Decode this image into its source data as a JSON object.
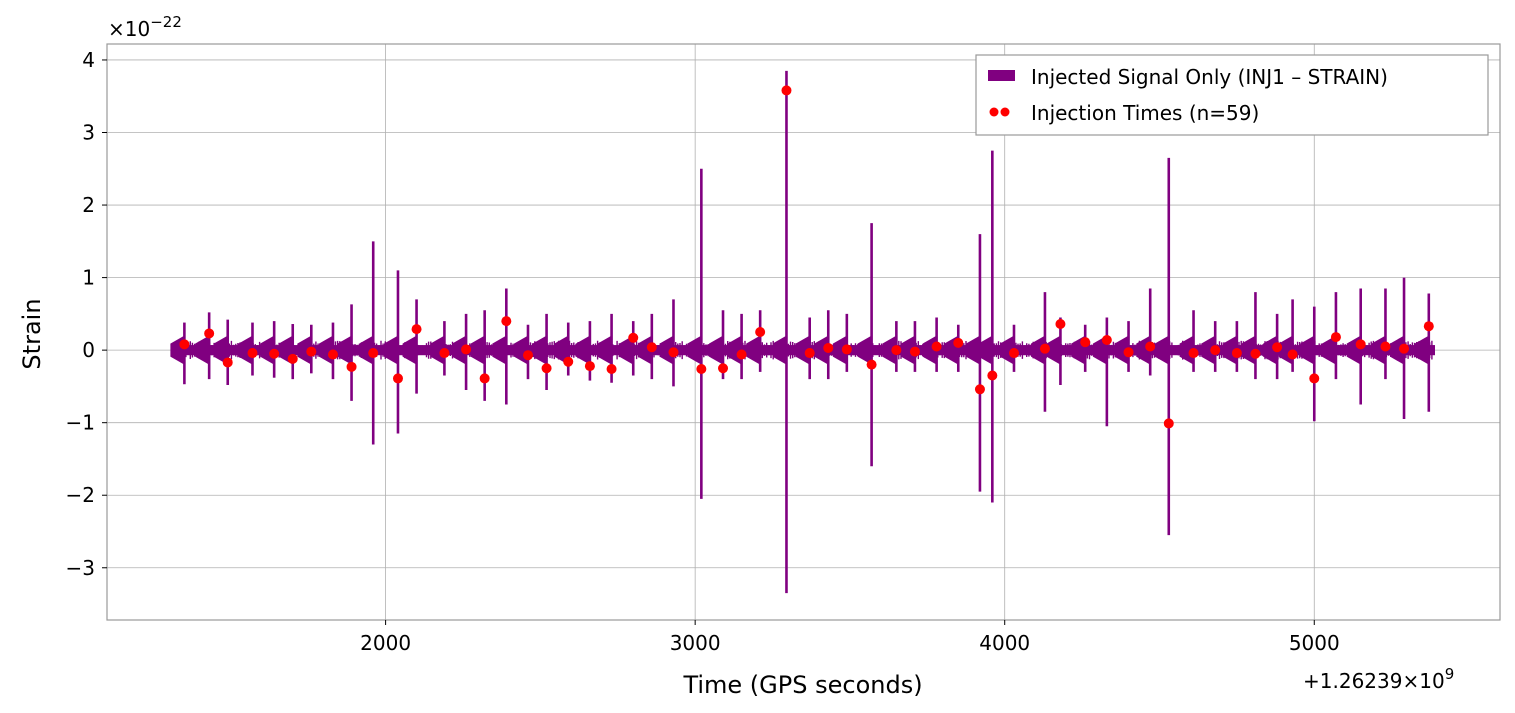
{
  "chart_data": {
    "type": "line",
    "xlabel": "Time (GPS seconds)",
    "ylabel": "Strain",
    "y_scale_label": "×10",
    "y_scale_exp": "−22",
    "x_offset_label": "+1.26239",
    "x_offset_times": "×10",
    "x_offset_exp": "9",
    "xlim": [
      1100,
      5600
    ],
    "ylim": [
      -3.72,
      4.22
    ],
    "xticks": [
      2000,
      3000,
      4000,
      5000
    ],
    "yticks": [
      -3,
      -2,
      -1,
      0,
      1,
      2,
      3,
      4
    ],
    "ytick_labels": [
      "−3",
      "−2",
      "−1",
      "0",
      "1",
      "2",
      "3",
      "4"
    ],
    "grid": true,
    "legend_position": "top-right",
    "signal_band": {
      "start": 1320,
      "end": 5390,
      "halfwidth": 0.07
    },
    "series": [
      {
        "name": "Injected Signal Only (INJ1 – STRAIN)",
        "color": "#800080",
        "kind": "signal",
        "spikes": [
          [
            1350,
            0.38,
            -0.47
          ],
          [
            1430,
            0.52,
            -0.4
          ],
          [
            1490,
            0.42,
            -0.48
          ],
          [
            1570,
            0.38,
            -0.35
          ],
          [
            1640,
            0.4,
            -0.38
          ],
          [
            1700,
            0.36,
            -0.4
          ],
          [
            1760,
            0.35,
            -0.32
          ],
          [
            1830,
            0.38,
            -0.4
          ],
          [
            1890,
            0.63,
            -0.7
          ],
          [
            1960,
            1.5,
            -1.3
          ],
          [
            2040,
            1.1,
            -1.15
          ],
          [
            2100,
            0.7,
            -0.6
          ],
          [
            2190,
            0.4,
            -0.35
          ],
          [
            2260,
            0.5,
            -0.55
          ],
          [
            2320,
            0.55,
            -0.7
          ],
          [
            2390,
            0.85,
            -0.75
          ],
          [
            2460,
            0.35,
            -0.4
          ],
          [
            2520,
            0.5,
            -0.55
          ],
          [
            2590,
            0.38,
            -0.35
          ],
          [
            2660,
            0.4,
            -0.42
          ],
          [
            2730,
            0.5,
            -0.45
          ],
          [
            2800,
            0.4,
            -0.35
          ],
          [
            2860,
            0.5,
            -0.4
          ],
          [
            2930,
            0.7,
            -0.5
          ],
          [
            3020,
            2.5,
            -2.05
          ],
          [
            3090,
            0.55,
            -0.4
          ],
          [
            3150,
            0.5,
            -0.4
          ],
          [
            3210,
            0.55,
            -0.3
          ],
          [
            3295,
            3.85,
            -3.35
          ],
          [
            3370,
            0.45,
            -0.4
          ],
          [
            3430,
            0.55,
            -0.4
          ],
          [
            3490,
            0.5,
            -0.3
          ],
          [
            3570,
            1.75,
            -1.6
          ],
          [
            3650,
            0.4,
            -0.3
          ],
          [
            3710,
            0.4,
            -0.3
          ],
          [
            3780,
            0.45,
            -0.3
          ],
          [
            3850,
            0.35,
            -0.3
          ],
          [
            3920,
            1.6,
            -1.95
          ],
          [
            3960,
            2.75,
            -2.1
          ],
          [
            4030,
            0.35,
            -0.3
          ],
          [
            4130,
            0.8,
            -0.85
          ],
          [
            4180,
            0.45,
            -0.48
          ],
          [
            4260,
            0.35,
            -0.3
          ],
          [
            4330,
            0.45,
            -1.05
          ],
          [
            4400,
            0.4,
            -0.3
          ],
          [
            4470,
            0.85,
            -0.35
          ],
          [
            4530,
            2.65,
            -2.55
          ],
          [
            4610,
            0.55,
            -0.3
          ],
          [
            4680,
            0.4,
            -0.3
          ],
          [
            4750,
            0.4,
            -0.3
          ],
          [
            4810,
            0.8,
            -0.4
          ],
          [
            4880,
            0.5,
            -0.4
          ],
          [
            4930,
            0.7,
            -0.3
          ],
          [
            5000,
            0.6,
            -0.98
          ],
          [
            5070,
            0.8,
            -0.4
          ],
          [
            5150,
            0.85,
            -0.75
          ],
          [
            5230,
            0.85,
            -0.4
          ],
          [
            5290,
            1.0,
            -0.95
          ],
          [
            5370,
            0.78,
            -0.85
          ]
        ]
      },
      {
        "name": "Injection Times (n=59)",
        "color": "#ff0000",
        "kind": "markers",
        "x": [
          1350,
          1430,
          1490,
          1570,
          1640,
          1700,
          1760,
          1830,
          1890,
          1960,
          2040,
          2100,
          2190,
          2260,
          2320,
          2390,
          2460,
          2520,
          2590,
          2660,
          2730,
          2800,
          2860,
          2930,
          3020,
          3090,
          3150,
          3210,
          3295,
          3370,
          3430,
          3490,
          3570,
          3650,
          3710,
          3780,
          3850,
          3920,
          3960,
          4030,
          4130,
          4180,
          4260,
          4330,
          4400,
          4470,
          4530,
          4610,
          4680,
          4750,
          4810,
          4880,
          4930,
          5000,
          5070,
          5150,
          5230,
          5290,
          5370
        ],
        "y": [
          0.08,
          0.23,
          -0.17,
          -0.04,
          -0.05,
          -0.12,
          -0.02,
          -0.06,
          -0.23,
          -0.04,
          -0.39,
          0.29,
          -0.04,
          0.01,
          -0.39,
          0.4,
          -0.07,
          -0.25,
          -0.16,
          -0.22,
          -0.26,
          0.17,
          0.04,
          -0.03,
          -0.26,
          -0.25,
          -0.06,
          0.25,
          3.58,
          -0.04,
          0.03,
          0.01,
          -0.2,
          0.0,
          -0.02,
          0.05,
          0.1,
          -0.54,
          -0.35,
          -0.04,
          0.02,
          0.36,
          0.11,
          0.14,
          -0.03,
          0.05,
          -1.01,
          -0.04,
          0.0,
          -0.04,
          -0.05,
          0.04,
          -0.06,
          -0.39,
          0.18,
          0.08,
          0.05,
          0.02,
          0.33
        ]
      }
    ]
  }
}
